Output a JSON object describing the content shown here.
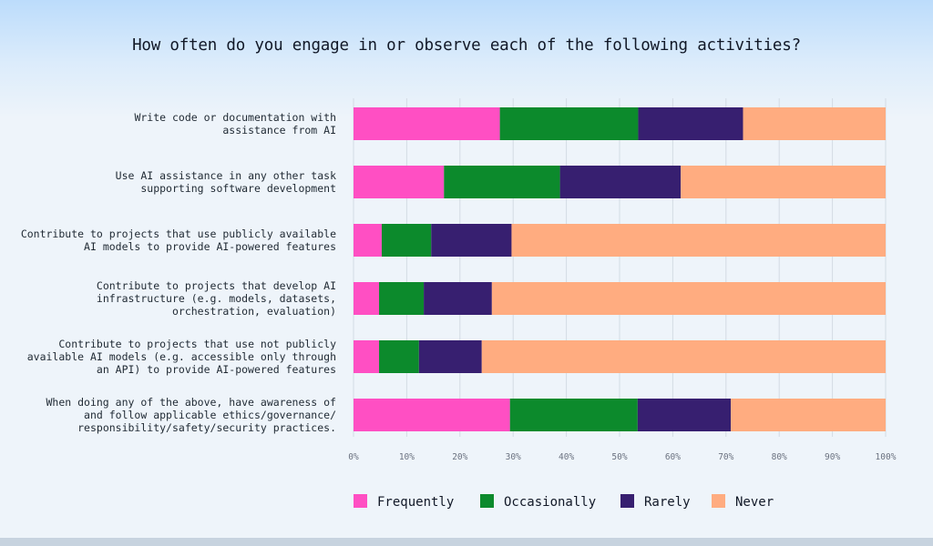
{
  "colors": {
    "frequently": "#ff4fc3",
    "occasionally": "#0c8a2c",
    "rarely": "#371f70",
    "never": "#ffac80"
  },
  "chart_data": {
    "type": "bar",
    "orientation": "horizontal",
    "stacked": true,
    "title": "How often do you engage in or observe each of the following activities?",
    "categories": [
      [
        "Write code or documentation with",
        "assistance from AI"
      ],
      [
        "Use AI assistance in any other task",
        "supporting software development"
      ],
      [
        "Contribute to projects that use publicly available",
        "AI models to provide AI-powered features"
      ],
      [
        "Contribute to projects that develop AI",
        "infrastructure (e.g. models, datasets,",
        "orchestration, evaluation)"
      ],
      [
        "Contribute to projects that use not publicly",
        "available AI models (e.g. accessible only through",
        "an API) to provide AI-powered features"
      ],
      [
        "When doing any of the above, have awareness of",
        "and follow applicable ethics/governance/",
        "responsibility/safety/security practices."
      ]
    ],
    "series": [
      {
        "name": "Frequently",
        "color": "#ff4fc3",
        "values": [
          27.5,
          17,
          5.3,
          4.8,
          4.8,
          29.4
        ]
      },
      {
        "name": "Occasionally",
        "color": "#0c8a2c",
        "values": [
          26,
          21.8,
          9.3,
          8.4,
          7.5,
          24
        ]
      },
      {
        "name": "Rarely",
        "color": "#371f70",
        "values": [
          19.7,
          22.7,
          15.1,
          12.8,
          11.8,
          17.5
        ]
      },
      {
        "name": "Never",
        "color": "#ffac80",
        "values": [
          26.8,
          38.5,
          70.3,
          74,
          75.9,
          29.1
        ]
      }
    ],
    "xlim": [
      0,
      100
    ],
    "xticks": [
      "0%",
      "10%",
      "20%",
      "30%",
      "40%",
      "50%",
      "60%",
      "70%",
      "80%",
      "90%",
      "100%"
    ],
    "grid": true,
    "legend": "bottom"
  }
}
